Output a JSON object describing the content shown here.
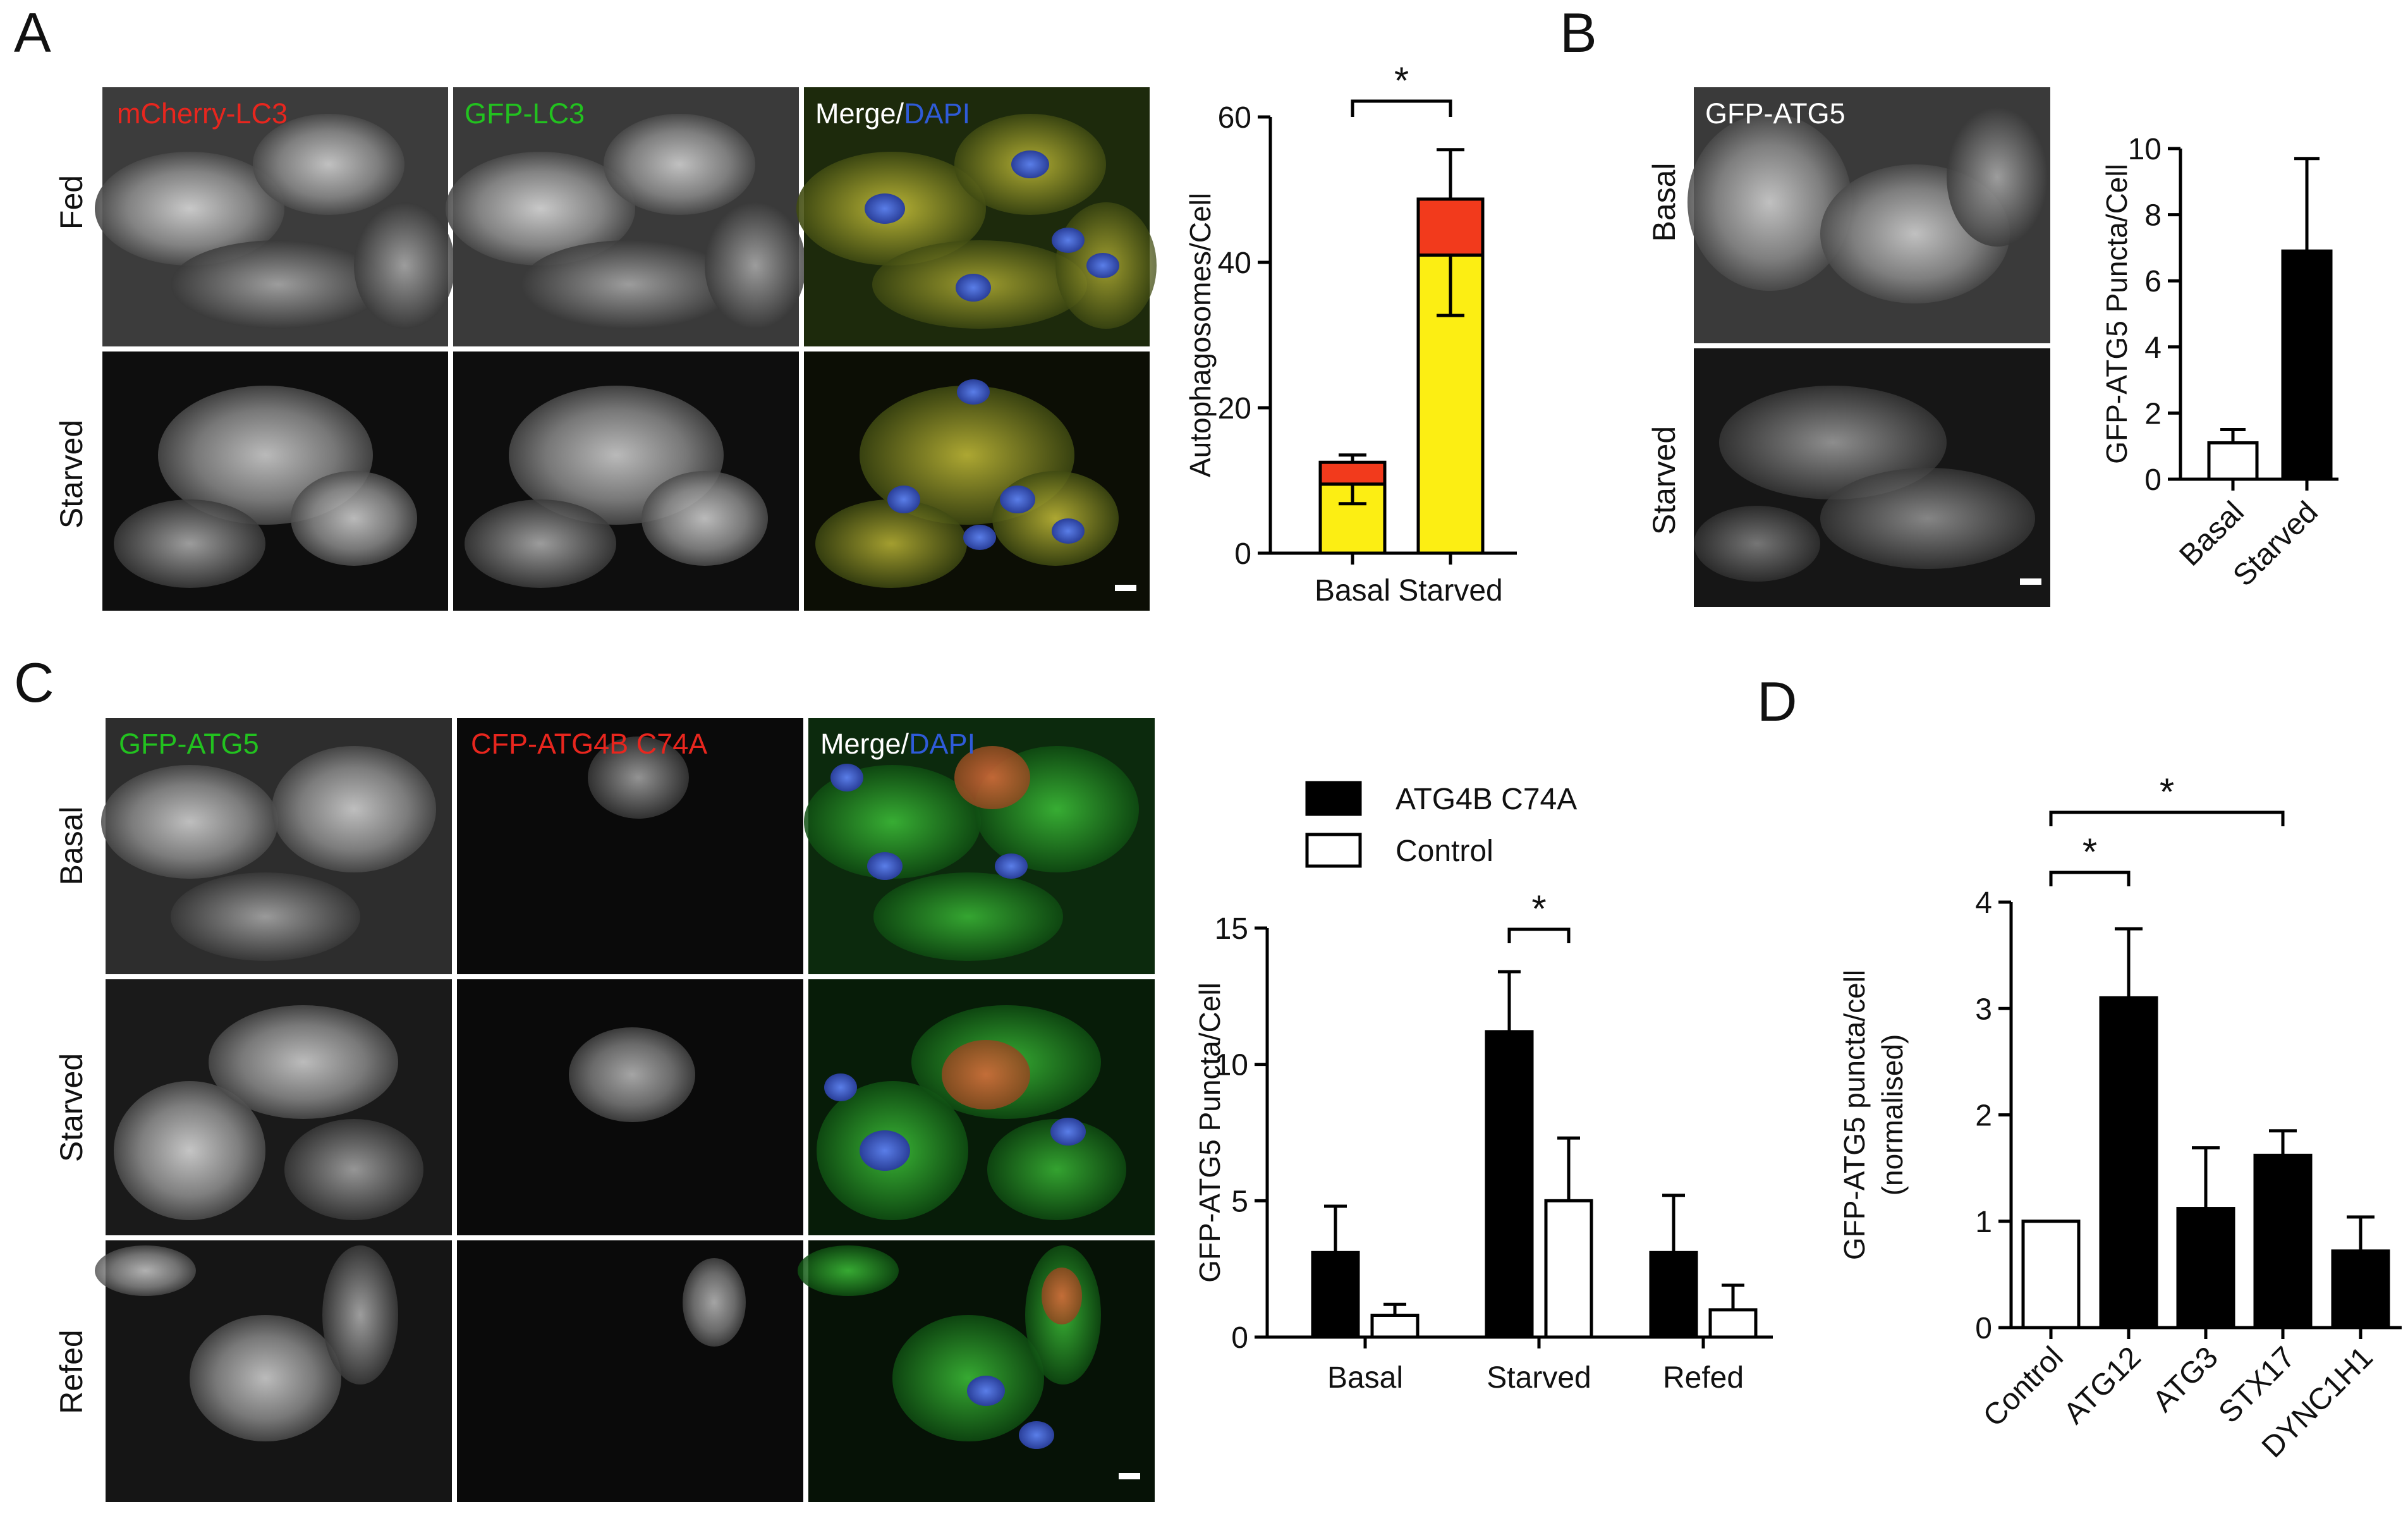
{
  "panels": {
    "A": {
      "letter": "A",
      "columns": [
        "mCherry-LC3",
        "GFP-LC3",
        "Merge/",
        "DAPI"
      ],
      "rows": [
        "Fed",
        "Starved"
      ]
    },
    "B": {
      "letter": "B",
      "columns": [
        "GFP-ATG5"
      ],
      "rows": [
        "Basal",
        "Starved"
      ]
    },
    "C": {
      "letter": "C",
      "columns": [
        "GFP-ATG5",
        "CFP-ATG4B C74A",
        "Merge/",
        "DAPI"
      ],
      "rows": [
        "Basal",
        "Starved",
        "Refed"
      ]
    },
    "D": {
      "letter": "D"
    }
  },
  "colors": {
    "red_label": "#e8261e",
    "green_label": "#22c21f",
    "blue_label": "#2f5bd8",
    "yellow_bar": "#fcee13",
    "red_bar": "#f23a1c",
    "black_bar": "#000000"
  },
  "chart_data": [
    {
      "id": "A",
      "type": "bar",
      "stacked": true,
      "categories": [
        "Basal",
        "Starved"
      ],
      "series": [
        {
          "values": [
            9.5,
            41
          ],
          "color": "#fcee13",
          "err": [
            2.7,
            8.3
          ]
        },
        {
          "values": [
            3,
            7.7
          ],
          "color": "#f23a1c",
          "err": [
            1.0,
            6.8
          ]
        }
      ],
      "ylabel": "Autophagosomes/Cell",
      "ylim": [
        0,
        60
      ],
      "yticks": [
        0,
        20,
        40,
        60
      ],
      "significance": [
        {
          "from": 0,
          "to": 1,
          "label": "*"
        }
      ]
    },
    {
      "id": "B",
      "type": "bar",
      "categories": [
        "Basal",
        "Starved"
      ],
      "values": [
        1.1,
        6.9
      ],
      "err": [
        0.4,
        2.8
      ],
      "fills": [
        "#ffffff",
        "#000000"
      ],
      "ylabel": "GFP-ATG5 Puncta/Cell",
      "ylim": [
        0,
        10
      ],
      "yticks": [
        0,
        2,
        4,
        6,
        8,
        10
      ]
    },
    {
      "id": "C",
      "type": "bar",
      "categories": [
        "Basal",
        "Starved",
        "Refed"
      ],
      "series": [
        {
          "name": "ATG4B C74A",
          "values": [
            3.1,
            11.2,
            3.1
          ],
          "err": [
            1.7,
            2.2,
            2.1
          ],
          "fill": "#000000"
        },
        {
          "name": "Control",
          "values": [
            0.8,
            5.0,
            1.0
          ],
          "err": [
            0.4,
            2.3,
            0.9
          ],
          "fill": "#ffffff"
        }
      ],
      "ylabel": "GFP-ATG5 Puncta/Cell",
      "ylim": [
        0,
        15
      ],
      "yticks": [
        0,
        5,
        10,
        15
      ],
      "significance": [
        {
          "group": "Starved",
          "label": "*"
        }
      ]
    },
    {
      "id": "D",
      "type": "bar",
      "categories": [
        "Control",
        "ATG12",
        "ATG3",
        "STX17",
        "DYNC1H1"
      ],
      "values": [
        1.0,
        3.1,
        1.12,
        1.62,
        0.72
      ],
      "err": [
        0,
        0.65,
        0.57,
        0.23,
        0.32
      ],
      "fills": [
        "#ffffff",
        "#000000",
        "#000000",
        "#000000",
        "#000000"
      ],
      "ylabel": [
        "GFP-ATG5 puncta/cell",
        "(normalised)"
      ],
      "ylim": [
        0,
        4
      ],
      "yticks": [
        0,
        1,
        2,
        3,
        4
      ],
      "significance": [
        {
          "from": 0,
          "to": 1,
          "label": "*"
        },
        {
          "from": 0,
          "to": 3,
          "label": "*"
        }
      ]
    }
  ]
}
